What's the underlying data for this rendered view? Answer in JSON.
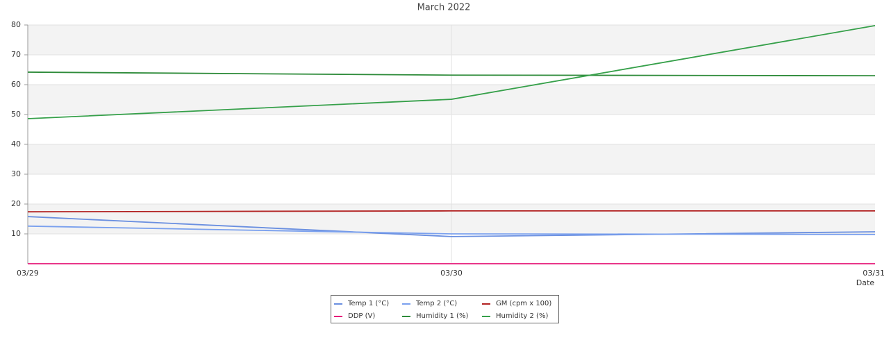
{
  "chart_data": {
    "type": "line",
    "title": "March 2022",
    "x_label": "Date",
    "categories": [
      "03/29",
      "03/30",
      "03/31"
    ],
    "series": [
      {
        "name": "Temp 1 (°C)",
        "color": "#6a8fe0",
        "values": [
          15.8,
          9.1,
          10.7
        ]
      },
      {
        "name": "Temp 2 (°C)",
        "color": "#7aa0ee",
        "values": [
          12.6,
          10.0,
          9.8
        ]
      },
      {
        "name": "GM (cpm x 100)",
        "color": "#b22222",
        "values": [
          17.4,
          17.7,
          17.7
        ]
      },
      {
        "name": "DDP (V)",
        "color": "#e6197a",
        "values": [
          0,
          0,
          0
        ]
      },
      {
        "name": "Humidity 1 (%)",
        "color": "#2e8b3a",
        "values": [
          64.2,
          63.2,
          63.0
        ]
      },
      {
        "name": "Humidity 2 (%)",
        "color": "#36a04a",
        "values": [
          48.6,
          55.1,
          79.8
        ]
      }
    ],
    "ylim": [
      0,
      80
    ],
    "yticks": [
      10,
      20,
      30,
      40,
      50,
      60,
      70,
      80
    ],
    "grid": true
  }
}
